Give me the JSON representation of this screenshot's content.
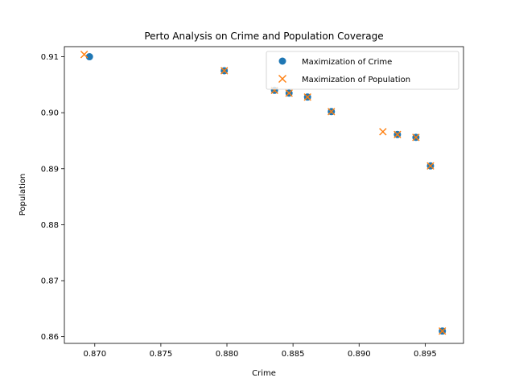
{
  "chart_data": {
    "type": "scatter",
    "title": "Perto Analysis on Crime and Population Coverage",
    "xlabel": "Crime",
    "ylabel": "Population",
    "xlim": [
      0.8677,
      0.8979
    ],
    "ylim": [
      0.8588,
      0.9118
    ],
    "xticks": [
      "0.870",
      "0.875",
      "0.880",
      "0.885",
      "0.890",
      "0.895"
    ],
    "yticks": [
      "0.86",
      "0.87",
      "0.88",
      "0.89",
      "0.90",
      "0.91"
    ],
    "grid": false,
    "legend_position": "top-right",
    "series": [
      {
        "name": "Maximization of Crime",
        "marker": "circle",
        "color": "#1f77b4",
        "points": [
          {
            "x": 0.8696,
            "y": 0.91
          },
          {
            "x": 0.8798,
            "y": 0.9075
          },
          {
            "x": 0.8836,
            "y": 0.904
          },
          {
            "x": 0.8847,
            "y": 0.9035
          },
          {
            "x": 0.8861,
            "y": 0.9028
          },
          {
            "x": 0.8879,
            "y": 0.9002
          },
          {
            "x": 0.8929,
            "y": 0.8961
          },
          {
            "x": 0.8943,
            "y": 0.8956
          },
          {
            "x": 0.8954,
            "y": 0.8905
          },
          {
            "x": 0.8963,
            "y": 0.861
          }
        ]
      },
      {
        "name": "Maximization of Population",
        "marker": "x",
        "color": "#ff7f0e",
        "points": [
          {
            "x": 0.8692,
            "y": 0.9104
          },
          {
            "x": 0.8798,
            "y": 0.9075
          },
          {
            "x": 0.8836,
            "y": 0.904
          },
          {
            "x": 0.8847,
            "y": 0.9035
          },
          {
            "x": 0.8861,
            "y": 0.9028
          },
          {
            "x": 0.8879,
            "y": 0.9002
          },
          {
            "x": 0.8918,
            "y": 0.8966
          },
          {
            "x": 0.8929,
            "y": 0.8961
          },
          {
            "x": 0.8943,
            "y": 0.8956
          },
          {
            "x": 0.8954,
            "y": 0.8905
          },
          {
            "x": 0.8963,
            "y": 0.861
          }
        ]
      }
    ]
  }
}
